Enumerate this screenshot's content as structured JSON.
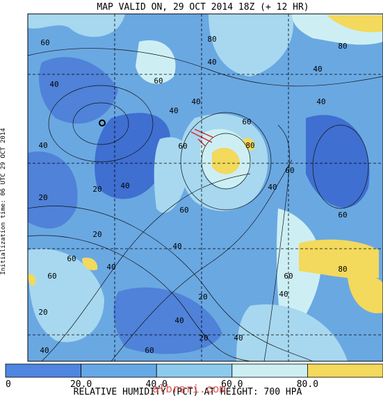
{
  "title": "MAP VALID ON, 29 OCT 2014 18Z (+ 12 HR)",
  "init_time": "Initialization time: 06 UTC 29 OCT 2014",
  "contour_labels": [
    "60",
    "80",
    "80",
    "40",
    "60",
    "40",
    "40",
    "40",
    "40",
    "40",
    "60",
    "40",
    "60",
    "80",
    "60",
    "40",
    "40",
    "20",
    "20",
    "60",
    "60",
    "20",
    "40",
    "60",
    "40",
    "60",
    "80",
    "60",
    "40",
    "20",
    "20",
    "40",
    "20",
    "40",
    "60",
    "40"
  ],
  "colorbar": {
    "labels": [
      "0",
      "20.0",
      "40.0",
      "60.0",
      "80.0"
    ],
    "colors": [
      "#4f86e0",
      "#66a8e6",
      "#8ccbee",
      "#cdeff4",
      "#f3d95c"
    ]
  },
  "caption": "RELATIVE HUMIDITY (PCT) AT HEIGHT: 700 HPA",
  "watermark": "albrari.com"
}
